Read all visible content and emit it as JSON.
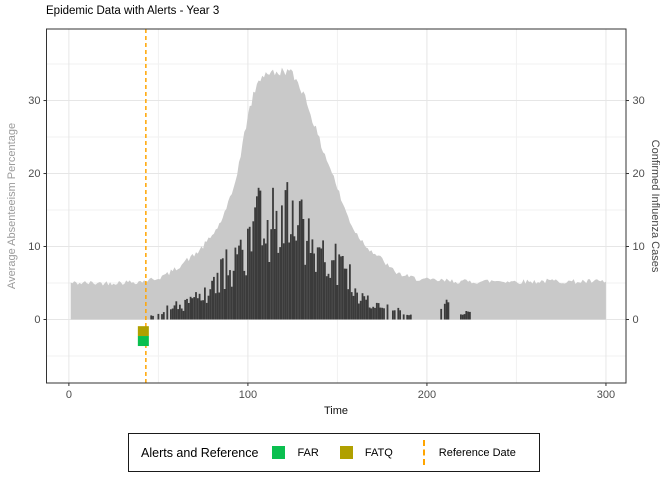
{
  "chart_data": {
    "type": "area",
    "title": "Epidemic Data with Alerts - Year 3",
    "xlabel": "Time",
    "ylabel_left": "Average Absenteeism Percentage",
    "ylabel_right": "Confirmed Influenza Cases",
    "xlim": [
      -12.5,
      311.2
    ],
    "ylim": [
      -8.7,
      39.8
    ],
    "x_major_ticks": [
      0,
      100,
      200,
      300
    ],
    "x_minor_gridlines": [
      50,
      150,
      250
    ],
    "y_major_ticks": [
      0,
      10,
      20,
      30
    ],
    "y_minor_gridlines": [
      -5,
      5,
      15,
      25,
      35
    ],
    "grid": "major+minor",
    "legend_position": "bottom",
    "noise_seed": 42,
    "series": [
      {
        "name": "Average Absenteeism Percentage",
        "type": "area",
        "color": "#c9c9c9",
        "x_range": [
          1,
          300
        ],
        "envelope_x": [
          1,
          10,
          20,
          30,
          40,
          45,
          50,
          55,
          60,
          65,
          70,
          75,
          80,
          84,
          88,
          92,
          96,
          100,
          104,
          108,
          112,
          116,
          120,
          124,
          128,
          132,
          136,
          140,
          144,
          148,
          152,
          156,
          160,
          165,
          170,
          175,
          180,
          185,
          190,
          200,
          210,
          220,
          230,
          240,
          250,
          260,
          270,
          280,
          290,
          300
        ],
        "envelope_y": [
          5,
          5,
          5,
          5.1,
          5.2,
          5.4,
          5.7,
          6.2,
          7,
          8,
          8.8,
          10,
          11.5,
          13,
          15,
          18,
          22.5,
          28,
          31.5,
          33.5,
          33.9,
          33.6,
          34.2,
          33.8,
          32.5,
          30.5,
          27.5,
          24.5,
          22,
          19.5,
          16.5,
          14,
          12,
          10.4,
          9.2,
          8.2,
          6.9,
          6.2,
          5.8,
          5.4,
          5.3,
          5.2,
          5.2,
          5.3,
          5.2,
          5.2,
          5.3,
          5.2,
          5.2,
          5.2
        ]
      },
      {
        "name": "Confirmed Influenza Cases",
        "type": "bar",
        "color": "#3b3b3b",
        "x_range": [
          46,
          226
        ],
        "envelope_x": [
          46,
          50,
          55,
          60,
          65,
          70,
          74,
          78,
          82,
          86,
          90,
          94,
          98,
          102,
          106,
          110,
          113,
          116,
          119,
          123,
          126,
          129,
          132,
          135,
          138,
          141,
          144,
          147,
          150,
          153,
          156,
          159,
          162,
          165,
          168,
          172,
          176,
          180,
          185,
          190,
          193,
          205,
          207,
          210,
          213,
          216,
          220,
          224,
          226
        ],
        "envelope_y": [
          1,
          1.5,
          2,
          2.5,
          3,
          3.5,
          4.5,
          5.5,
          7,
          9,
          10.5,
          10,
          13,
          15.5,
          18.5,
          17.5,
          19.5,
          18,
          21,
          20.5,
          19,
          18,
          17,
          16.5,
          16,
          14,
          12.5,
          12,
          11,
          9,
          8.5,
          6,
          5,
          4,
          3,
          2.5,
          2.2,
          2,
          1.5,
          1.2,
          0,
          0,
          1.5,
          3,
          2.5,
          1.5,
          1.2,
          1.5,
          0
        ]
      }
    ],
    "alerts": [
      {
        "label": "FATQ",
        "color": "#b0a000",
        "x": 41.6,
        "y": -1.6
      },
      {
        "label": "FAR",
        "color": "#0abf4f",
        "x": 41.6,
        "y": -2.95
      }
    ],
    "reference_line": {
      "x": 43,
      "color": "#ffa500",
      "style": "dashed"
    },
    "legend": {
      "title": "Alerts and Reference",
      "entries": [
        {
          "label": "FAR",
          "swatch": "square",
          "color": "#0abf4f"
        },
        {
          "label": "FATQ",
          "swatch": "square",
          "color": "#b0a000"
        },
        {
          "label": "Reference Date",
          "swatch": "dashed-vline",
          "color": "#ffa500"
        }
      ]
    },
    "colors": {
      "panel_border": "#333333",
      "major_grid": "#e6e6e6",
      "minor_grid": "#f1f1f1",
      "tick_label": "#4d4d4d",
      "background": "#ffffff"
    }
  }
}
